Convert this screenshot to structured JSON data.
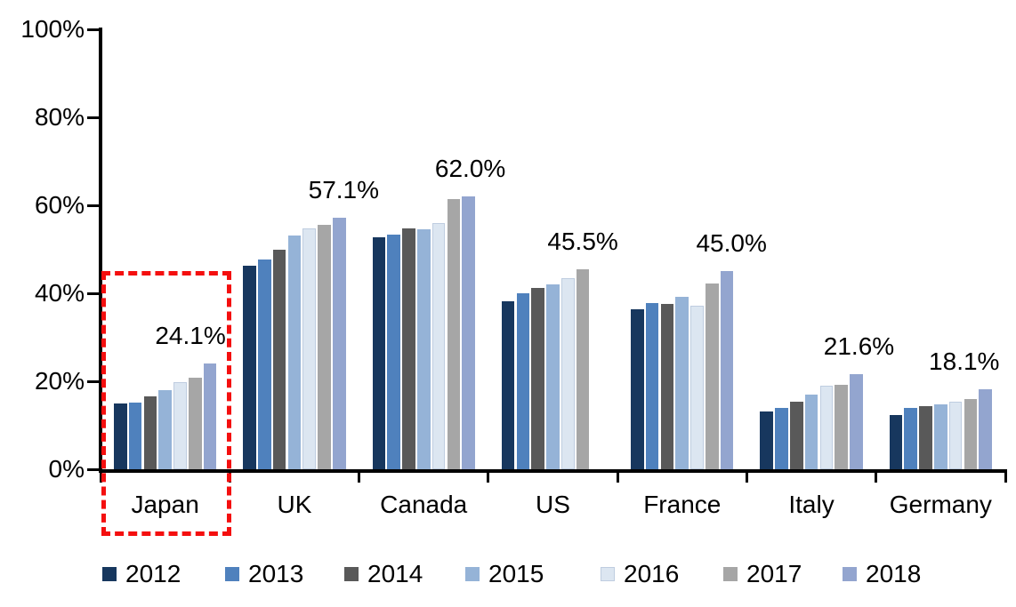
{
  "chart_data": {
    "type": "bar",
    "title": "",
    "xlabel": "",
    "ylabel": "",
    "ylim": [
      0,
      100
    ],
    "grid": false,
    "legend_position": "bottom",
    "y_ticks": [
      {
        "value": 100,
        "label": "100%"
      },
      {
        "value": 80,
        "label": "80%"
      },
      {
        "value": 60,
        "label": "60%"
      },
      {
        "value": 40,
        "label": "40%"
      },
      {
        "value": 20,
        "label": "20%"
      },
      {
        "value": 0,
        "label": "0%"
      }
    ],
    "categories": [
      "Japan",
      "UK",
      "Canada",
      "US",
      "France",
      "Italy",
      "Germany"
    ],
    "series": [
      {
        "name": "2012",
        "color": "#17375E",
        "edge": null,
        "values": [
          14.9,
          46.2,
          52.8,
          38.2,
          36.4,
          13.1,
          12.4
        ]
      },
      {
        "name": "2013",
        "color": "#4F81BD",
        "edge": null,
        "values": [
          15.1,
          47.7,
          53.3,
          40.0,
          37.7,
          13.9,
          13.9
        ]
      },
      {
        "name": "2014",
        "color": "#595959",
        "edge": null,
        "values": [
          16.6,
          49.9,
          54.8,
          41.2,
          37.5,
          15.4,
          14.3
        ]
      },
      {
        "name": "2015",
        "color": "#95B3D7",
        "edge": null,
        "values": [
          17.9,
          53.2,
          54.5,
          42.0,
          39.2,
          16.9,
          14.7
        ]
      },
      {
        "name": "2016",
        "color": "#DCE6F1",
        "edge": "#BFCDE0",
        "values": [
          19.8,
          54.8,
          56.0,
          43.5,
          37.2,
          19.0,
          15.4
        ]
      },
      {
        "name": "2017",
        "color": "#A6A6A6",
        "edge": null,
        "values": [
          20.9,
          55.6,
          61.5,
          45.5,
          42.2,
          19.2,
          15.9
        ]
      },
      {
        "name": "2018",
        "color": "#93A5CF",
        "edge": null,
        "values": [
          24.1,
          57.1,
          62.0,
          null,
          45.0,
          21.6,
          18.1
        ]
      }
    ],
    "data_labels": [
      "24.1%",
      "57.1%",
      "62.0%",
      "45.5%",
      "45.0%",
      "21.6%",
      "18.1%"
    ],
    "annotation": {
      "type": "dashed-rectangle",
      "target_category": "Japan",
      "color": "#FF0000"
    },
    "colors": {
      "axis": "#000000",
      "text": "#000000",
      "background": "#FFFFFF"
    }
  }
}
